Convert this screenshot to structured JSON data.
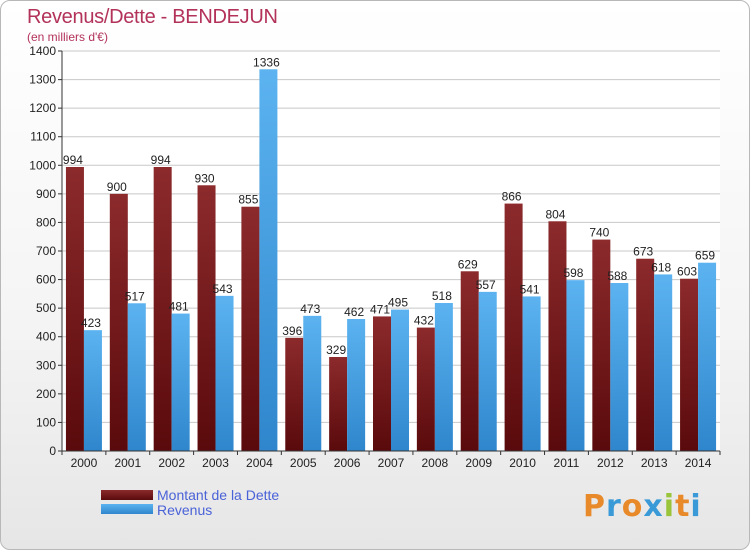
{
  "title": "Revenus/Dette - BENDEJUN",
  "subtitle": "(en milliers d'€)",
  "logo_text": "Proxiti",
  "colors": {
    "debt": "#7a1a1c",
    "revenue": "#4aa3e3",
    "title": "#b3325a",
    "legend_text": "#4a62d8"
  },
  "chart_data": {
    "type": "bar",
    "title": "Revenus/Dette - BENDEJUN",
    "ylabel": "(en milliers d'€)",
    "xlabel": "",
    "ylim": [
      0,
      1400
    ],
    "yticks": [
      0,
      100,
      200,
      300,
      400,
      500,
      600,
      700,
      800,
      900,
      1000,
      1100,
      1200,
      1300,
      1400
    ],
    "grid": true,
    "legend_position": "bottom-left",
    "categories": [
      "2000",
      "2001",
      "2002",
      "2003",
      "2004",
      "2005",
      "2006",
      "2007",
      "2008",
      "2009",
      "2010",
      "2011",
      "2012",
      "2013",
      "2014"
    ],
    "series": [
      {
        "name": "Montant de la Dette",
        "values": [
          994,
          900,
          994,
          930,
          855,
          396,
          329,
          471,
          432,
          629,
          866,
          804,
          740,
          673,
          603
        ]
      },
      {
        "name": "Revenus",
        "values": [
          423,
          517,
          481,
          543,
          1336,
          473,
          462,
          495,
          518,
          557,
          541,
          598,
          588,
          618,
          659
        ]
      }
    ]
  }
}
